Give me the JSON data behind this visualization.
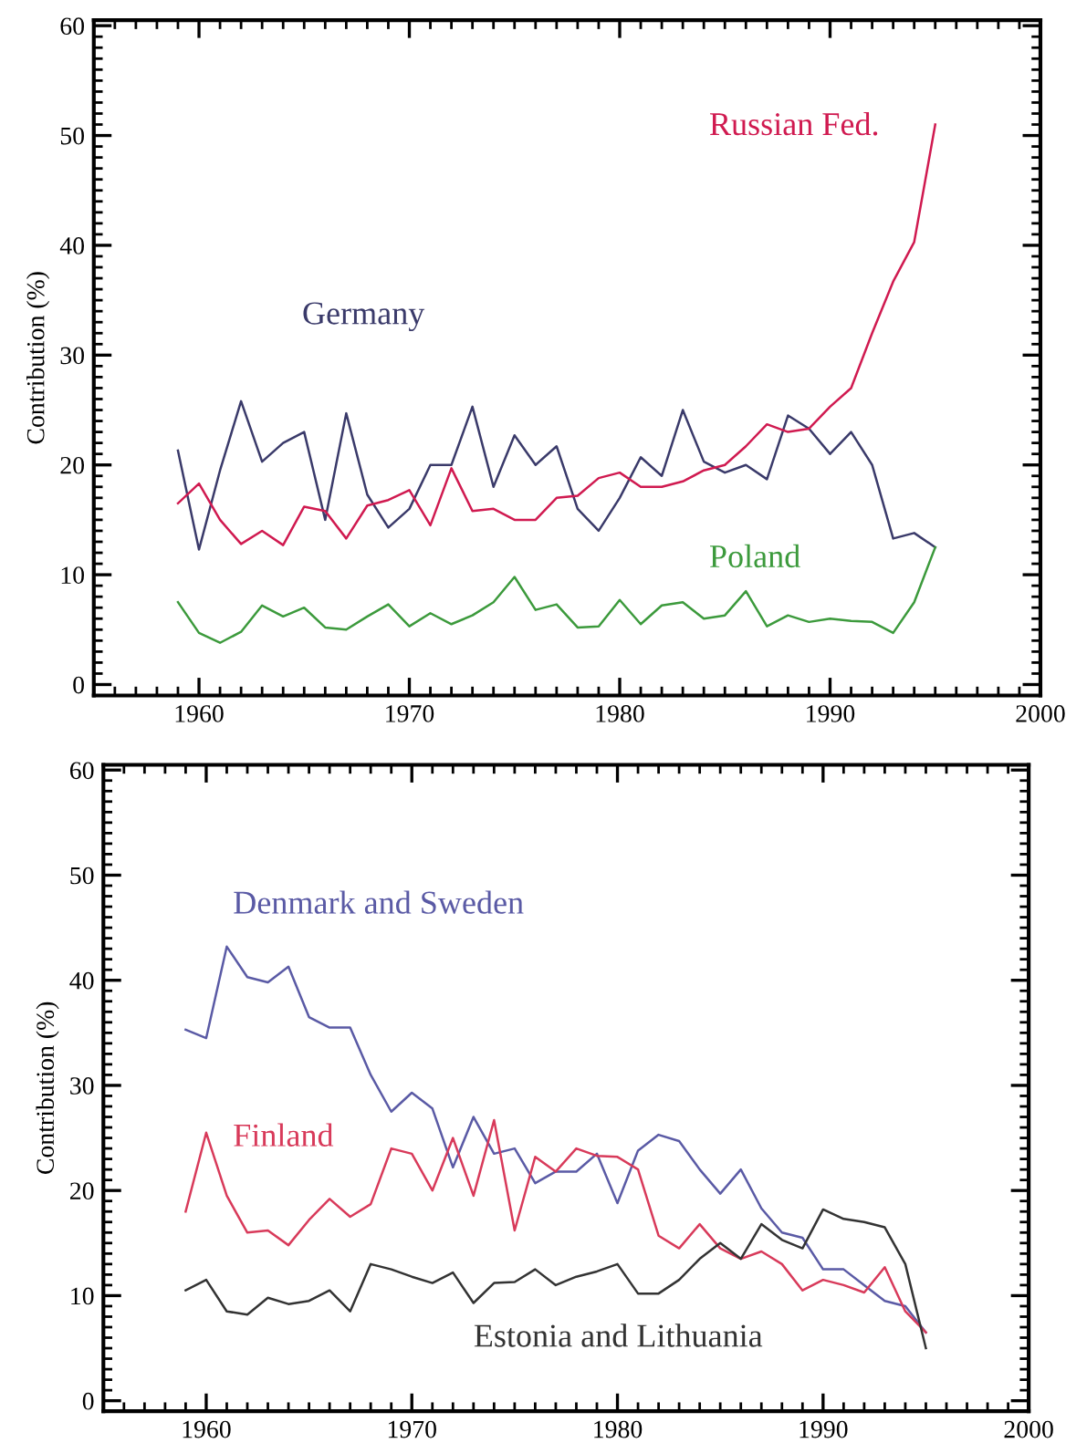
{
  "chart_data": [
    {
      "type": "line",
      "ylabel": "Contribution (%)",
      "xlim": [
        1955,
        2000
      ],
      "ylim": [
        -1,
        60.5
      ],
      "xticks": [
        1960,
        1970,
        1980,
        1990,
        2000
      ],
      "yticks": [
        0,
        10,
        20,
        30,
        40,
        50,
        60
      ],
      "grid": false,
      "legend": false,
      "line_style": "solid",
      "x": [
        1959,
        1960,
        1961,
        1962,
        1963,
        1964,
        1965,
        1966,
        1967,
        1968,
        1969,
        1970,
        1971,
        1972,
        1973,
        1974,
        1975,
        1976,
        1977,
        1978,
        1979,
        1980,
        1981,
        1982,
        1983,
        1984,
        1985,
        1986,
        1987,
        1988,
        1989,
        1990,
        1991,
        1992,
        1993,
        1994,
        1995
      ],
      "series": [
        {
          "name": "Germany",
          "color": "#3a3a6a",
          "values": [
            21.3,
            12.3,
            19.5,
            25.8,
            20.3,
            22,
            23,
            15,
            24.7,
            17.3,
            14.3,
            16,
            20,
            20,
            25.3,
            18,
            22.7,
            20,
            21.7,
            16,
            14,
            17,
            20.7,
            19,
            25,
            20.3,
            19.3,
            20,
            18.7,
            24.5,
            23.3,
            21,
            23,
            20,
            13.3,
            13.8,
            12.5
          ]
        },
        {
          "name": "Russian Fed.",
          "color": "#d01a50",
          "values": [
            16.5,
            18.3,
            15,
            12.8,
            14,
            12.7,
            16.2,
            15.8,
            13.3,
            16.3,
            16.8,
            17.7,
            14.5,
            19.7,
            15.8,
            16,
            15,
            15,
            17,
            17.2,
            18.8,
            19.3,
            18,
            18,
            18.5,
            19.5,
            20,
            21.7,
            23.7,
            23,
            23.3,
            25.3,
            27,
            32,
            36.7,
            40.3,
            51
          ]
        },
        {
          "name": "Poland",
          "color": "#3c9a3c",
          "values": [
            7.5,
            4.7,
            3.8,
            4.8,
            7.2,
            6.2,
            7,
            5.2,
            5,
            6.2,
            7.3,
            5.3,
            6.5,
            5.5,
            6.3,
            7.5,
            9.8,
            6.8,
            7.3,
            5.2,
            5.3,
            7.7,
            5.5,
            7.2,
            7.5,
            6,
            6.3,
            8.5,
            5.3,
            6.3,
            5.7,
            6,
            5.8,
            5.7,
            4.7,
            7.5,
            12.5
          ]
        }
      ]
    },
    {
      "type": "line",
      "ylabel": "Contribution (%)",
      "xlim": [
        1955,
        2000
      ],
      "ylim": [
        -1,
        60.5
      ],
      "xticks": [
        1960,
        1970,
        1980,
        1990,
        2000
      ],
      "yticks": [
        0,
        10,
        20,
        30,
        40,
        50,
        60
      ],
      "grid": false,
      "legend": false,
      "line_style": "solid",
      "x": [
        1959,
        1960,
        1961,
        1962,
        1963,
        1964,
        1965,
        1966,
        1967,
        1968,
        1969,
        1970,
        1971,
        1972,
        1973,
        1974,
        1975,
        1976,
        1977,
        1978,
        1979,
        1980,
        1981,
        1982,
        1983,
        1984,
        1985,
        1986,
        1987,
        1988,
        1989,
        1990,
        1991,
        1992,
        1993,
        1994,
        1995
      ],
      "series": [
        {
          "name": "Denmark and Sweden",
          "color": "#5a5aa5",
          "values": [
            35.3,
            34.5,
            43.2,
            40.3,
            39.8,
            41.3,
            36.5,
            35.5,
            35.5,
            31,
            27.5,
            29.3,
            27.8,
            22.2,
            27,
            23.5,
            24,
            20.7,
            21.8,
            21.8,
            23.5,
            18.8,
            23.8,
            25.3,
            24.7,
            22,
            19.7,
            22,
            18.3,
            16,
            15.5,
            12.5,
            12.5,
            11,
            9.5,
            9,
            6.5
          ]
        },
        {
          "name": "Finland",
          "color": "#d83a5a",
          "values": [
            18,
            25.5,
            19.5,
            16,
            16.2,
            14.8,
            17.2,
            19.2,
            17.5,
            18.7,
            24,
            23.5,
            20,
            25,
            19.5,
            26.7,
            16.2,
            23.2,
            21.8,
            24,
            23.3,
            23.2,
            22,
            15.7,
            14.5,
            16.8,
            14.5,
            13.5,
            14.2,
            13,
            10.5,
            11.5,
            11,
            10.3,
            12.7,
            8.5,
            6.5
          ]
        },
        {
          "name": "Estonia and Lithuania",
          "color": "#333333",
          "values": [
            10.5,
            11.5,
            8.5,
            8.2,
            9.8,
            9.2,
            9.5,
            10.5,
            8.5,
            13,
            12.5,
            11.8,
            11.2,
            12.2,
            9.3,
            11.2,
            11.3,
            12.5,
            11,
            11.8,
            12.3,
            13,
            10.2,
            10.2,
            11.5,
            13.5,
            15,
            13.5,
            16.8,
            15.3,
            14.5,
            18.2,
            17.3,
            17,
            16.5,
            13,
            5
          ]
        }
      ]
    }
  ]
}
